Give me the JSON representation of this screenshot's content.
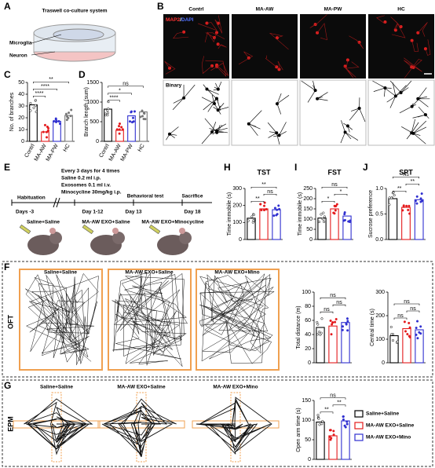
{
  "figure": {
    "panel_letters": [
      "A",
      "B",
      "C",
      "D",
      "E",
      "F",
      "G",
      "H",
      "I",
      "J"
    ],
    "panel_a": {
      "title": "Traswell co-culture system",
      "microglia": "Microglia",
      "neuron": "Neuron"
    },
    "panel_b": {
      "columns": [
        "Contrl",
        "MA-AW",
        "MA-PW",
        "HC"
      ],
      "stain_main": "MAP2",
      "stain_sep": "/",
      "stain_second": "DAPI",
      "binary": "Binary"
    },
    "panel_e": {
      "schedule": [
        "Every 3 days for 4 times",
        "Saline 0.2 ml i.p.",
        "Exosomes 0.1 ml i.v.",
        "Minocycline 30mg/kg i.p."
      ],
      "phases": [
        "Habituation",
        "Behavioral test",
        "Sacrifice"
      ],
      "days": [
        "Days -3",
        "Day 1-12",
        "Day 13",
        "Day 18"
      ],
      "groups": [
        "Saline+Saline",
        "MA-AW EXO+Saline",
        "MA-AW EXO+Minocycline"
      ]
    },
    "panel_f": {
      "label": "OFT",
      "titles": [
        "Saline+Saline",
        "MA-AW EXO+Saline",
        "MA-AW EXO+Mino"
      ]
    },
    "panel_g": {
      "label": "EPM",
      "titles": [
        "Saline+Saline",
        "MA-AW EXO+Saline",
        "MA-AW EXO+Mino"
      ]
    },
    "legend": [
      {
        "name": "Saline+Saline",
        "color": "#000000"
      },
      {
        "name": "MA-AW EXO+Saline",
        "color": "#e41a1c"
      },
      {
        "name": "MA-AW EXO+Mino",
        "color": "#3030d0"
      }
    ]
  },
  "chart_data": [
    {
      "type": "bar",
      "ylabel": "No. of branches",
      "categories": [
        "Contrl",
        "MA-AW",
        "MA-PW",
        "HC"
      ],
      "values": [
        31,
        8,
        17,
        22
      ],
      "colors": [
        "#000000",
        "#e41a1c",
        "#3030d0",
        "#777777"
      ],
      "ylim": [
        0,
        50
      ],
      "yticks": [
        0,
        10,
        20,
        30,
        40,
        50
      ],
      "comparisons": [
        {
          "label": "****",
          "pair": [
            0,
            1
          ]
        },
        {
          "label": "****",
          "pair": [
            0,
            2
          ]
        },
        {
          "label": "**",
          "pair": [
            0,
            3
          ]
        }
      ]
    },
    {
      "type": "bar",
      "ylabel": "Branch length (sum)",
      "categories": [
        "Contrl",
        "MA-AW",
        "MA-PW",
        "HC"
      ],
      "values": [
        820,
        280,
        650,
        750
      ],
      "colors": [
        "#000000",
        "#e41a1c",
        "#3030d0",
        "#777777"
      ],
      "ylim": [
        0,
        1500
      ],
      "yticks": [
        0,
        500,
        1000,
        1500
      ],
      "comparisons": [
        {
          "label": "****",
          "pair": [
            0,
            1
          ]
        },
        {
          "label": "*",
          "pair": [
            0,
            2
          ]
        },
        {
          "label": "ns",
          "pair": [
            0,
            3
          ]
        }
      ]
    },
    {
      "type": "bar",
      "title": "TST",
      "ylabel": "Time immobile (s)",
      "categories": [
        null,
        null,
        null
      ],
      "values": [
        125,
        180,
        175
      ],
      "colors": [
        "#000000",
        "#e41a1c",
        "#3030d0"
      ],
      "ylim": [
        0,
        300
      ],
      "yticks": [
        0,
        100,
        200,
        300
      ],
      "comparisons": [
        {
          "label": "**",
          "pair": [
            0,
            1
          ]
        },
        {
          "label": "ns",
          "pair": [
            1,
            2
          ]
        },
        {
          "label": "**",
          "pair": [
            0,
            2
          ]
        }
      ]
    },
    {
      "type": "bar",
      "title": "FST",
      "ylabel": "Time immobile (s)",
      "categories": [
        null,
        null,
        null
      ],
      "values": [
        105,
        150,
        115
      ],
      "colors": [
        "#000000",
        "#e41a1c",
        "#3030d0"
      ],
      "ylim": [
        0,
        250
      ],
      "yticks": [
        0,
        50,
        100,
        150,
        200,
        250
      ],
      "comparisons": [
        {
          "label": "*",
          "pair": [
            0,
            1
          ]
        },
        {
          "label": "*",
          "pair": [
            1,
            2
          ]
        },
        {
          "label": "ns",
          "pair": [
            0,
            2
          ]
        }
      ]
    },
    {
      "type": "bar",
      "title": "SPT",
      "ylabel": "Sucrose preference",
      "categories": [
        null,
        null,
        null
      ],
      "values": [
        0.8,
        0.63,
        0.78
      ],
      "colors": [
        "#000000",
        "#e41a1c",
        "#3030d0"
      ],
      "ylim": [
        0,
        1.0
      ],
      "yticks": [
        {
          "value": 0,
          "label": "0.0"
        },
        {
          "value": 0.5,
          "label": "0.5"
        },
        {
          "value": 1,
          "label": "1.0"
        }
      ],
      "comparisons": [
        {
          "label": "**",
          "pair": [
            0,
            1
          ]
        },
        {
          "label": "**",
          "pair": [
            1,
            2
          ]
        },
        {
          "label": "ns",
          "pair": [
            0,
            2
          ]
        }
      ]
    },
    {
      "type": "bar",
      "ylabel": "Total distance (m)",
      "categories": [
        null,
        null,
        null
      ],
      "values": [
        50,
        52,
        57
      ],
      "colors": [
        "#000000",
        "#e41a1c",
        "#3030d0"
      ],
      "ylim": [
        0,
        100
      ],
      "yticks": [
        0,
        20,
        40,
        60,
        80,
        100
      ],
      "comparisons": [
        {
          "label": "ns",
          "pair": [
            0,
            1
          ]
        },
        {
          "label": "ns",
          "pair": [
            1,
            2
          ]
        },
        {
          "label": "ns",
          "pair": [
            0,
            2
          ]
        }
      ]
    },
    {
      "type": "bar",
      "ylabel": "Central time (s)",
      "categories": [
        null,
        null,
        null
      ],
      "values": [
        115,
        145,
        140
      ],
      "colors": [
        "#000000",
        "#e41a1c",
        "#3030d0"
      ],
      "ylim": [
        0,
        300
      ],
      "yticks": [
        0,
        100,
        200,
        300
      ],
      "comparisons": [
        {
          "label": "ns",
          "pair": [
            0,
            1
          ]
        },
        {
          "label": "ns",
          "pair": [
            1,
            2
          ]
        },
        {
          "label": "ns",
          "pair": [
            0,
            2
          ]
        }
      ]
    },
    {
      "type": "bar",
      "ylabel": "Open arm time (s)",
      "categories": [
        null,
        null,
        null
      ],
      "values": [
        95,
        60,
        98
      ],
      "colors": [
        "#000000",
        "#e41a1c",
        "#3030d0"
      ],
      "ylim": [
        0,
        150
      ],
      "yticks": [
        0,
        50,
        100,
        150
      ],
      "comparisons": [
        {
          "label": "**",
          "pair": [
            0,
            1
          ]
        },
        {
          "label": "**",
          "pair": [
            1,
            2
          ]
        },
        {
          "label": "ns",
          "pair": [
            0,
            2
          ]
        }
      ]
    }
  ]
}
